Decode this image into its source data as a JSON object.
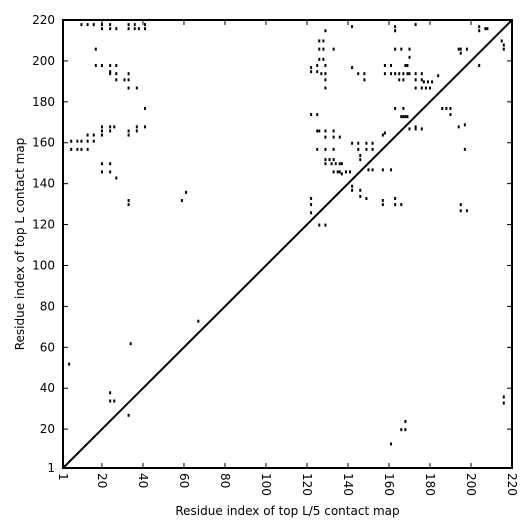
{
  "chart_data": {
    "type": "scatter",
    "xlabel": "Residue index of top L/5 contact map",
    "ylabel": "Residue index of top L contact map",
    "xlim": [
      1,
      220
    ],
    "ylim": [
      1,
      220
    ],
    "xticks": [
      1,
      20,
      40,
      60,
      80,
      100,
      120,
      140,
      160,
      180,
      200,
      220
    ],
    "yticks": [
      1,
      20,
      40,
      60,
      80,
      100,
      120,
      140,
      160,
      180,
      200,
      220
    ],
    "diagonal": true,
    "grid": false,
    "marker_color": "#000000",
    "points_upper": [
      [
        4,
        52
      ],
      [
        33,
        27
      ],
      [
        34,
        62
      ],
      [
        24,
        38
      ],
      [
        24,
        34
      ],
      [
        26,
        34
      ],
      [
        59,
        132
      ],
      [
        61,
        136
      ],
      [
        67,
        73
      ],
      [
        168,
        20
      ],
      [
        168,
        24
      ],
      [
        166,
        20
      ],
      [
        161,
        13
      ],
      [
        216,
        33
      ],
      [
        216,
        36
      ],
      [
        195,
        127
      ],
      [
        198,
        127
      ],
      [
        195,
        130
      ]
    ],
    "points_lower": [
      [
        10,
        218
      ],
      [
        13,
        218
      ],
      [
        16,
        218
      ],
      [
        20,
        218
      ],
      [
        20,
        216
      ],
      [
        24,
        216
      ],
      [
        24,
        218
      ],
      [
        27,
        216
      ],
      [
        33,
        218
      ],
      [
        33,
        216
      ],
      [
        36,
        216
      ],
      [
        36,
        218
      ],
      [
        38,
        216
      ],
      [
        41,
        216
      ],
      [
        41,
        218
      ],
      [
        17,
        206
      ],
      [
        17,
        198
      ],
      [
        20,
        198
      ],
      [
        24,
        198
      ],
      [
        24,
        195
      ],
      [
        24,
        194
      ],
      [
        27,
        198
      ],
      [
        27,
        194
      ],
      [
        27,
        191
      ],
      [
        31,
        191
      ],
      [
        33,
        194
      ],
      [
        33,
        191
      ],
      [
        33,
        187
      ],
      [
        37,
        187
      ],
      [
        41,
        177
      ],
      [
        5,
        161
      ],
      [
        5,
        157
      ],
      [
        8,
        161
      ],
      [
        8,
        157
      ],
      [
        10,
        161
      ],
      [
        10,
        157
      ],
      [
        13,
        164
      ],
      [
        13,
        161
      ],
      [
        13,
        157
      ],
      [
        16,
        164
      ],
      [
        16,
        161
      ],
      [
        20,
        168
      ],
      [
        20,
        166
      ],
      [
        20,
        164
      ],
      [
        24,
        168
      ],
      [
        24,
        166
      ],
      [
        26,
        168
      ],
      [
        33,
        166
      ],
      [
        33,
        164
      ],
      [
        37,
        168
      ],
      [
        37,
        166
      ],
      [
        41,
        168
      ],
      [
        20,
        150
      ],
      [
        20,
        146
      ],
      [
        24,
        150
      ],
      [
        24,
        146
      ],
      [
        27,
        143
      ],
      [
        33,
        132
      ],
      [
        33,
        130
      ],
      [
        122,
        197
      ],
      [
        122,
        195
      ],
      [
        122,
        174
      ],
      [
        125,
        174
      ],
      [
        125,
        195
      ],
      [
        125,
        198
      ],
      [
        126,
        201
      ],
      [
        126,
        206
      ],
      [
        126,
        210
      ],
      [
        127,
        194
      ],
      [
        128,
        201
      ],
      [
        128,
        206
      ],
      [
        128,
        210
      ],
      [
        129,
        215
      ],
      [
        129,
        198
      ],
      [
        129,
        194
      ],
      [
        129,
        191
      ],
      [
        129,
        187
      ],
      [
        133,
        206
      ],
      [
        142,
        217
      ],
      [
        142,
        197
      ],
      [
        145,
        194
      ],
      [
        148,
        194
      ],
      [
        148,
        191
      ],
      [
        125,
        166
      ],
      [
        126,
        166
      ],
      [
        129,
        166
      ],
      [
        129,
        163
      ],
      [
        133,
        166
      ],
      [
        133,
        163
      ],
      [
        136,
        163
      ],
      [
        125,
        157
      ],
      [
        129,
        157
      ],
      [
        133,
        157
      ],
      [
        129,
        152
      ],
      [
        129,
        150
      ],
      [
        131,
        152
      ],
      [
        132,
        150
      ],
      [
        133,
        152
      ],
      [
        133,
        146
      ],
      [
        134,
        150
      ],
      [
        135,
        146
      ],
      [
        136,
        150
      ],
      [
        136,
        146
      ],
      [
        137,
        150
      ],
      [
        137,
        145
      ],
      [
        139,
        146
      ],
      [
        141,
        146
      ],
      [
        142,
        139
      ],
      [
        142,
        137
      ],
      [
        142,
        160
      ],
      [
        145,
        160
      ],
      [
        145,
        157
      ],
      [
        146,
        154
      ],
      [
        146,
        152
      ],
      [
        149,
        160
      ],
      [
        149,
        157
      ],
      [
        152,
        160
      ],
      [
        152,
        157
      ],
      [
        150,
        147
      ],
      [
        152,
        147
      ],
      [
        157,
        147
      ],
      [
        161,
        147
      ],
      [
        146,
        137
      ],
      [
        146,
        134
      ],
      [
        149,
        133
      ],
      [
        157,
        132
      ],
      [
        157,
        130
      ],
      [
        163,
        133
      ],
      [
        163,
        130
      ],
      [
        166,
        130
      ],
      [
        122,
        133
      ],
      [
        122,
        130
      ],
      [
        122,
        126
      ],
      [
        126,
        120
      ],
      [
        129,
        120
      ],
      [
        158,
        198
      ],
      [
        158,
        194
      ],
      [
        161,
        198
      ],
      [
        161,
        194
      ],
      [
        163,
        206
      ],
      [
        163,
        194
      ],
      [
        165,
        191
      ],
      [
        165,
        194
      ],
      [
        166,
        206
      ],
      [
        167,
        194
      ],
      [
        167,
        191
      ],
      [
        168,
        198
      ],
      [
        169,
        194
      ],
      [
        169,
        198
      ],
      [
        170,
        194
      ],
      [
        170,
        202
      ],
      [
        170,
        206
      ],
      [
        173,
        218
      ],
      [
        173,
        194
      ],
      [
        173,
        191
      ],
      [
        173,
        187
      ],
      [
        176,
        194
      ],
      [
        176,
        191
      ],
      [
        176,
        187
      ],
      [
        177,
        190
      ],
      [
        178,
        187
      ],
      [
        179,
        190
      ],
      [
        180,
        187
      ],
      [
        181,
        190
      ],
      [
        184,
        193
      ],
      [
        163,
        177
      ],
      [
        163,
        217
      ],
      [
        163,
        215
      ],
      [
        166,
        173
      ],
      [
        167,
        173
      ],
      [
        168,
        173
      ],
      [
        169,
        173
      ],
      [
        167,
        177
      ],
      [
        157,
        164
      ],
      [
        158,
        165
      ],
      [
        170,
        167
      ],
      [
        173,
        168
      ],
      [
        173,
        167
      ],
      [
        176,
        167
      ],
      [
        186,
        177
      ],
      [
        188,
        177
      ],
      [
        190,
        177
      ],
      [
        190,
        174
      ],
      [
        194,
        168
      ],
      [
        197,
        169
      ],
      [
        197,
        157
      ],
      [
        194,
        206
      ],
      [
        195,
        206
      ],
      [
        195,
        204
      ],
      [
        198,
        206
      ],
      [
        204,
        217
      ],
      [
        204,
        215
      ],
      [
        207,
        216
      ],
      [
        208,
        216
      ],
      [
        204,
        198
      ],
      [
        215,
        210
      ],
      [
        216,
        208
      ],
      [
        216,
        206
      ]
    ]
  }
}
